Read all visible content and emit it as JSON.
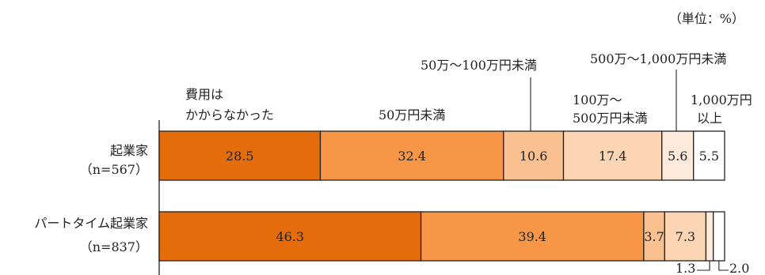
{
  "unit_label": "（単位：%）",
  "chart_data": {
    "type": "bar",
    "orientation": "horizontal",
    "stacked": true,
    "xlim": [
      0,
      100
    ],
    "categories": [
      {
        "line1": "起業家",
        "line2": "（n=567）"
      },
      {
        "line1": "パートタイム起業家",
        "line2": "（n=837）"
      }
    ],
    "series": [
      {
        "legend_lines": [
          "費用は",
          "かからなかった"
        ],
        "values": [
          28.5,
          46.3
        ],
        "value_labels": [
          "28.5",
          "46.3"
        ],
        "color": "#e46c0a"
      },
      {
        "legend_lines": [
          "50万円未満"
        ],
        "values": [
          32.4,
          39.4
        ],
        "value_labels": [
          "32.4",
          "39.4"
        ],
        "color": "#f79646"
      },
      {
        "legend_lines": [
          "50万～100万円未満"
        ],
        "values": [
          10.6,
          3.7
        ],
        "value_labels": [
          "10.6",
          "3.7"
        ],
        "color": "#fac090"
      },
      {
        "legend_lines": [
          "100万～",
          "500万円未満"
        ],
        "values": [
          17.4,
          7.3
        ],
        "value_labels": [
          "17.4",
          "7.3"
        ],
        "color": "#fcd5b5"
      },
      {
        "legend_lines": [
          "500万～1,000万円未満"
        ],
        "values": [
          5.6,
          1.3
        ],
        "value_labels": [
          "5.6",
          "1.3"
        ],
        "color": "#fdeada"
      },
      {
        "legend_lines": [
          "1,000万円",
          "以上"
        ],
        "values": [
          5.5,
          2.0
        ],
        "value_labels": [
          "5.5",
          "2.0"
        ],
        "color": "#ffffff"
      }
    ]
  }
}
